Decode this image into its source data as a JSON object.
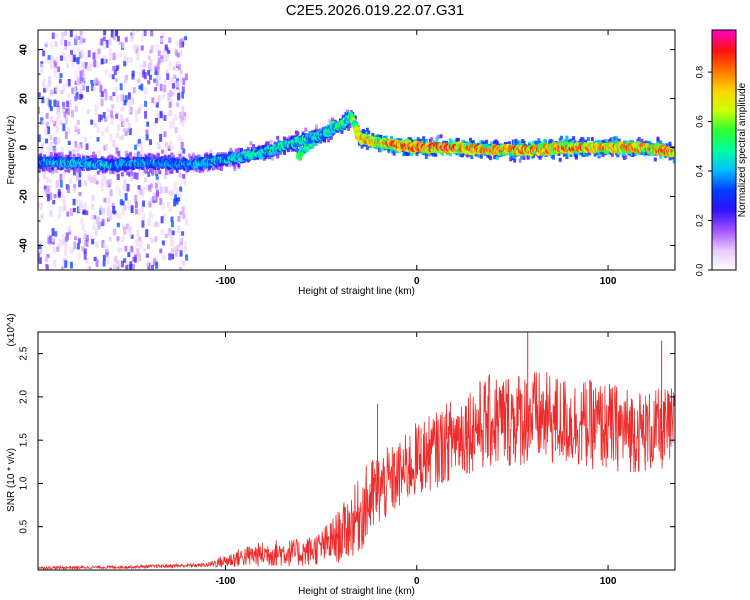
{
  "title": "C2E5.2026.019.22.07.G31",
  "chart_data": [
    {
      "type": "heatmap",
      "xlabel": "Height of straight line (km)",
      "ylabel": "Frequency (Hz)",
      "xlim": [
        -198,
        135
      ],
      "ylim": [
        -50,
        48
      ],
      "xticks": [
        -100,
        0,
        100
      ],
      "yticks": [
        -40,
        -20,
        0,
        20,
        40
      ],
      "colorbar": {
        "label": "Normalized spectral amplitude",
        "range": [
          0,
          0.97
        ],
        "ticks": [
          0.0,
          0.2,
          0.4,
          0.6,
          0.8
        ],
        "colors": [
          "#ffffff",
          "#e8c8ff",
          "#a050ff",
          "#3010ff",
          "#0040ff",
          "#00c0ff",
          "#00ffa0",
          "#30ff30",
          "#d0ff00",
          "#ffd000",
          "#ff7000",
          "#ff1010",
          "#ff00d0"
        ]
      },
      "ridge": {
        "x": [
          -198,
          -180,
          -160,
          -140,
          -120,
          -100,
          -80,
          -60,
          -50,
          -40,
          -34,
          -30,
          -20,
          0,
          20,
          40,
          60,
          80,
          100,
          120,
          135
        ],
        "frequency": [
          -6,
          -6,
          -7,
          -6,
          -7,
          -5,
          -2,
          3,
          5,
          9,
          13,
          4,
          2,
          0,
          0,
          -1,
          -1,
          0,
          0,
          0,
          -2
        ],
        "amplitude": [
          0.45,
          0.5,
          0.45,
          0.48,
          0.45,
          0.5,
          0.55,
          0.55,
          0.5,
          0.6,
          0.65,
          0.85,
          0.9,
          0.95,
          0.95,
          0.9,
          0.92,
          0.95,
          0.9,
          0.92,
          0.9
        ]
      },
      "secondary_branch": {
        "x": [
          -62,
          -55,
          -48,
          -42
        ],
        "frequency": [
          -3,
          2,
          6,
          9
        ]
      },
      "noise_band": {
        "x_from": -198,
        "x_to": -120,
        "frequency_range": [
          -50,
          48
        ]
      }
    },
    {
      "type": "line",
      "xlabel": "Height of straight line (km)",
      "ylabel": "SNR (10 * v/v)",
      "y_scale_label": "(x10^4)",
      "y_units": "x10^4",
      "xlim": [
        -198,
        135
      ],
      "ylim": [
        0,
        2.75
      ],
      "xticks": [
        -100,
        0,
        100
      ],
      "yticks": [
        0.5,
        1.0,
        1.5,
        2.0,
        2.5
      ],
      "ytick_labels": [
        "0.5",
        "1.0",
        "1.5",
        "2.0",
        "2.5"
      ],
      "color": "#ee2b2b",
      "envelope": {
        "x": [
          -198,
          -150,
          -110,
          -100,
          -90,
          -75,
          -60,
          -50,
          -40,
          -30,
          -25,
          -20,
          -10,
          0,
          10,
          20,
          30,
          40,
          60,
          80,
          100,
          120,
          135
        ],
        "baseline": [
          0.02,
          0.03,
          0.05,
          0.08,
          0.12,
          0.15,
          0.15,
          0.2,
          0.3,
          0.5,
          0.65,
          0.8,
          0.95,
          1.15,
          1.25,
          1.4,
          1.5,
          1.55,
          1.6,
          1.55,
          1.5,
          1.45,
          1.5
        ],
        "fluctuation": [
          0.02,
          0.02,
          0.03,
          0.1,
          0.15,
          0.2,
          0.2,
          0.25,
          0.4,
          0.55,
          0.6,
          0.55,
          0.5,
          0.55,
          0.55,
          0.6,
          0.65,
          0.7,
          0.7,
          0.65,
          0.65,
          0.6,
          0.6
        ]
      },
      "annotated_peaks": [
        {
          "x": -20.5,
          "y": 1.92
        },
        {
          "x": 58,
          "y": 2.75
        },
        {
          "x": 128,
          "y": 2.65
        }
      ]
    }
  ]
}
